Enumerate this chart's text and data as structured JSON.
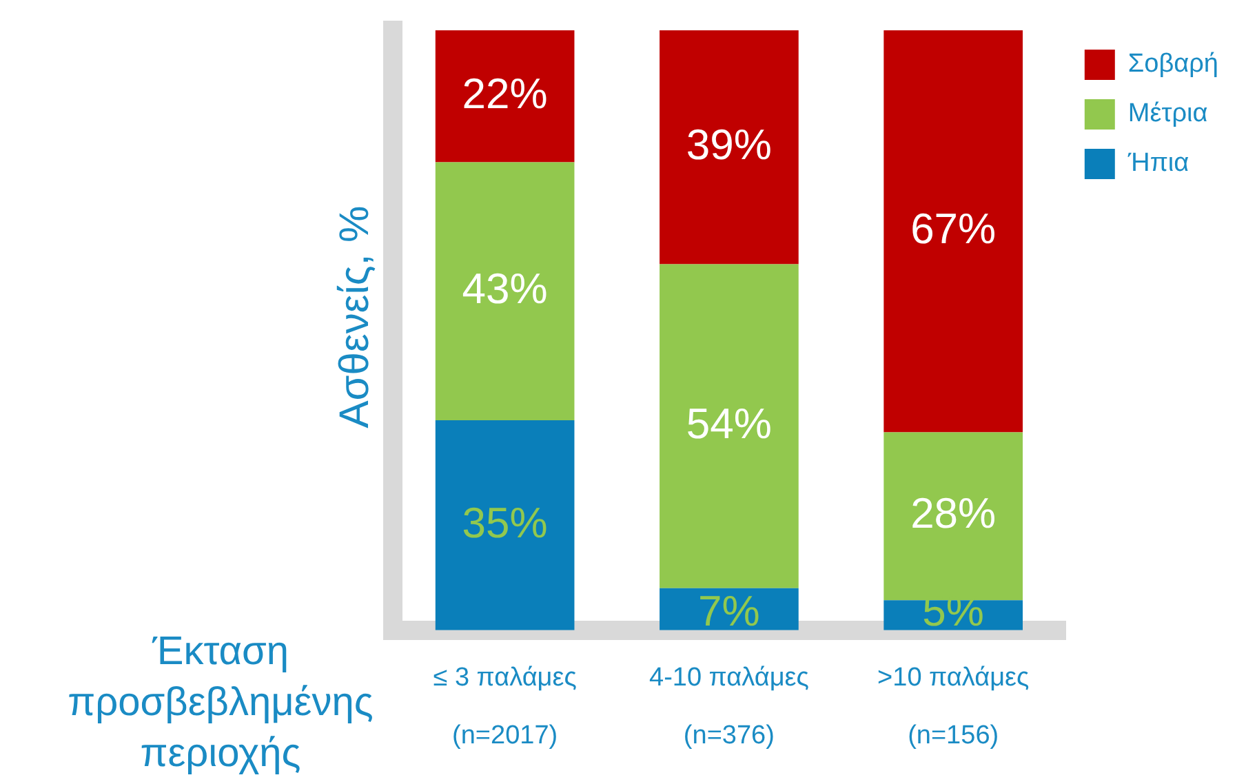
{
  "chart_data": {
    "type": "bar",
    "stacked": true,
    "ylabel": "Ασθενείς, %",
    "xlabel": "Έκταση προσβεβλημένης περιοχής",
    "categories": [
      "≤ 3 παλάμες\n(n=2017)",
      "4-10 παλάμες\n(n=376)",
      ">10 παλάμες\n(n=156)"
    ],
    "series": [
      {
        "name": "Ήπια",
        "color": "#0a7fba",
        "values": [
          35,
          7,
          5
        ],
        "value_labels": [
          "35%",
          "7%",
          "5%"
        ]
      },
      {
        "name": "Μέτρια",
        "color": "#92c84e",
        "values": [
          43,
          54,
          28
        ],
        "value_labels": [
          "43%",
          "54%",
          "28%"
        ]
      },
      {
        "name": "Σοβαρή",
        "color": "#c00000",
        "values": [
          22,
          39,
          67
        ],
        "value_labels": [
          "22%",
          "39%",
          "67%"
        ]
      }
    ],
    "legend": "right",
    "grid": false
  }
}
